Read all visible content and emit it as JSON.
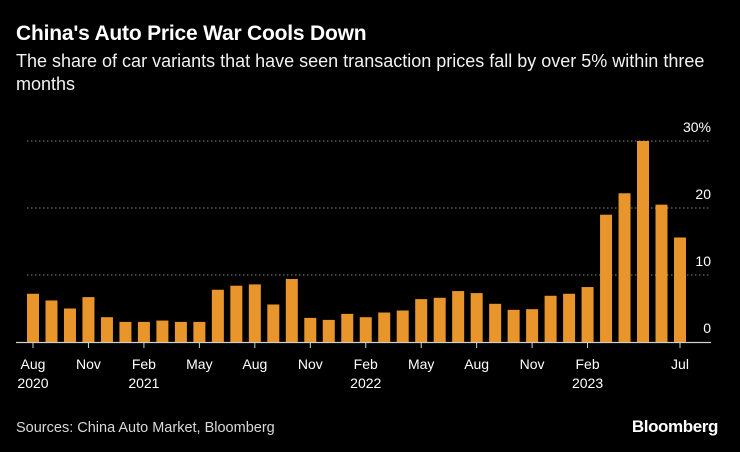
{
  "header": {
    "title": "China's Auto Price War Cools Down",
    "subtitle": "The share of car variants that have seen transaction prices fall by over 5% within three months"
  },
  "footer": {
    "source": "Sources: China Auto Market, Bloomberg",
    "brand": "Bloomberg"
  },
  "chart_data": {
    "type": "bar",
    "title": "China's Auto Price War Cools Down",
    "subtitle": "The share of car variants that have seen transaction prices fall by over 5% within three months",
    "x": [
      "2020-08",
      "2020-09",
      "2020-10",
      "2020-11",
      "2020-12",
      "2021-01",
      "2021-02",
      "2021-03",
      "2021-04",
      "2021-05",
      "2021-06",
      "2021-07",
      "2021-08",
      "2021-09",
      "2021-10",
      "2021-11",
      "2021-12",
      "2022-01",
      "2022-02",
      "2022-03",
      "2022-04",
      "2022-05",
      "2022-06",
      "2022-07",
      "2022-08",
      "2022-09",
      "2022-10",
      "2022-11",
      "2022-12",
      "2023-01",
      "2023-02",
      "2023-03",
      "2023-04",
      "2023-05",
      "2023-06",
      "2023-07"
    ],
    "values": [
      7.2,
      6.2,
      5.0,
      6.7,
      3.7,
      3.0,
      3.0,
      3.2,
      3.0,
      3.0,
      7.8,
      8.4,
      8.6,
      5.6,
      9.4,
      3.6,
      3.3,
      4.2,
      3.7,
      4.4,
      4.7,
      6.4,
      6.6,
      7.6,
      7.3,
      5.7,
      4.8,
      4.9,
      6.9,
      7.2,
      8.2,
      19.0,
      22.2,
      30.0,
      20.5,
      15.6
    ],
    "tick_labels": [
      {
        "index": 0,
        "month": "Aug",
        "year": "2020"
      },
      {
        "index": 3,
        "month": "Nov",
        "year": ""
      },
      {
        "index": 6,
        "month": "Feb",
        "year": "2021"
      },
      {
        "index": 9,
        "month": "May",
        "year": ""
      },
      {
        "index": 12,
        "month": "Aug",
        "year": ""
      },
      {
        "index": 15,
        "month": "Nov",
        "year": ""
      },
      {
        "index": 18,
        "month": "Feb",
        "year": "2022"
      },
      {
        "index": 21,
        "month": "May",
        "year": ""
      },
      {
        "index": 24,
        "month": "Aug",
        "year": ""
      },
      {
        "index": 27,
        "month": "Nov",
        "year": ""
      },
      {
        "index": 30,
        "month": "Feb",
        "year": "2023"
      },
      {
        "index": 35,
        "month": "Jul",
        "year": ""
      }
    ],
    "yticks": [
      {
        "value": 0,
        "label": "0"
      },
      {
        "value": 10,
        "label": "10"
      },
      {
        "value": 20,
        "label": "20"
      },
      {
        "value": 30,
        "label": "30%"
      }
    ],
    "ylim": [
      0,
      30
    ],
    "xlabel": "",
    "ylabel": "",
    "grid": true,
    "colors": {
      "bar": "#e8962b",
      "grid": "#8a8a8a",
      "axis": "#d0d0d0",
      "background": "#000000"
    }
  }
}
